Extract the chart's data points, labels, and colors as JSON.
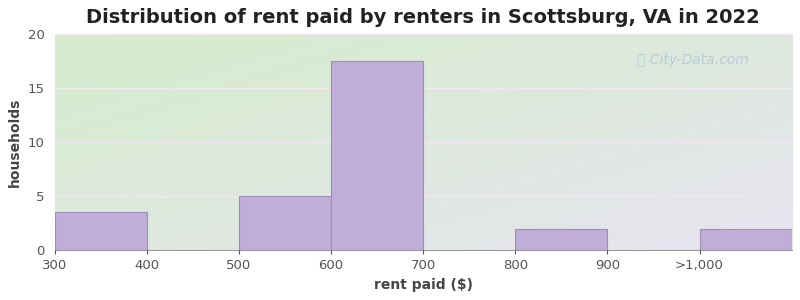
{
  "title": "Distribution of rent paid by renters in Scottsburg, VA in 2022",
  "xlabel": "rent paid ($)",
  "ylabel": "households",
  "tick_labels": [
    "300",
    "400",
    "500",
    "600",
    "700",
    "800",
    "900",
    ">1,000"
  ],
  "bar_values": [
    3.5,
    0,
    5,
    17.5,
    0,
    2,
    0,
    2
  ],
  "bar_color": "#c0aed8",
  "bar_edge_color": "#a08cb8",
  "ylim": [
    0,
    20
  ],
  "yticks": [
    0,
    5,
    10,
    15,
    20
  ],
  "bg_top_left": "#d4edcc",
  "bg_bottom_right": "#e8e4f0",
  "grid_color": "#f0e8f0",
  "title_fontsize": 14,
  "axis_label_fontsize": 10,
  "tick_fontsize": 9.5,
  "watermark_color": "#b0c8d8",
  "watermark_fontsize": 10
}
